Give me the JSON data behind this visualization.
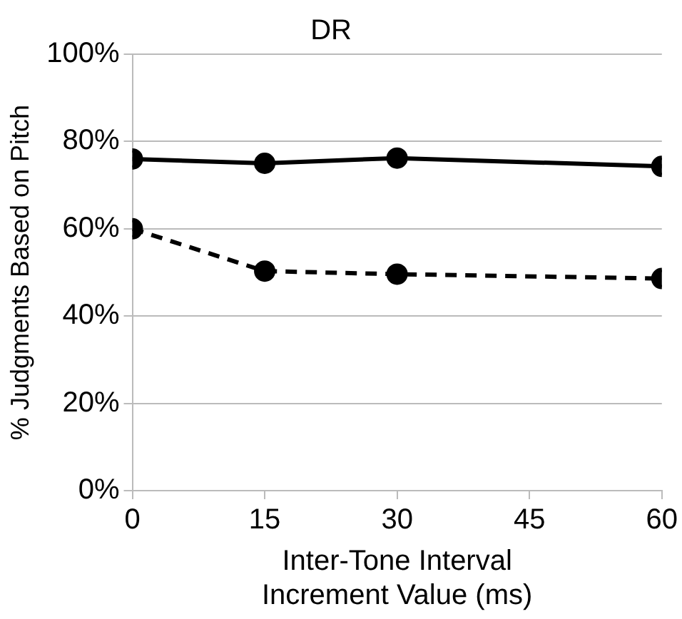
{
  "chart_data": {
    "type": "line",
    "title": "DR",
    "xlabel": "Inter-Tone Interval\nIncrement Value (ms)",
    "ylabel": "% Judgments Based on Pitch",
    "x": [
      0,
      15,
      30,
      60
    ],
    "series": [
      {
        "color": "#000000",
        "values": [
          76.0,
          75.0,
          76.2,
          74.3
        ],
        "line_style": "solid"
      },
      {
        "color": "#000000",
        "values": [
          60.0,
          50.3,
          49.6,
          48.6
        ],
        "line_style": "dashed"
      }
    ],
    "xlim": [
      0,
      60
    ],
    "xticks": [
      0,
      15,
      30,
      45,
      60
    ],
    "ylim": [
      0,
      100
    ],
    "yticks": [
      {
        "value": 0,
        "label": "0%"
      },
      {
        "value": 20,
        "label": "20%"
      },
      {
        "value": 40,
        "label": "40%"
      },
      {
        "value": 60,
        "label": "60%"
      },
      {
        "value": 80,
        "label": "80%"
      },
      {
        "value": 100,
        "label": "100%"
      }
    ],
    "grid": "y",
    "marker": "circle",
    "legend": false
  }
}
